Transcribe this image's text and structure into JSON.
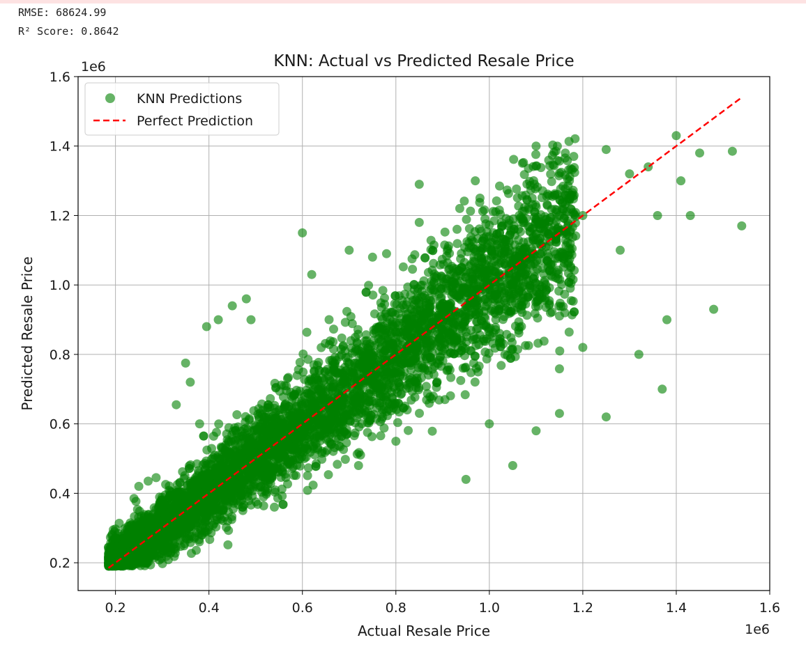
{
  "output": {
    "rmse_line": "RMSE: 68624.99",
    "r2_line": "R² Score: 0.8642"
  },
  "chart_data": {
    "type": "scatter",
    "title": "KNN: Actual vs Predicted Resale Price",
    "xlabel": "Actual Resale Price",
    "ylabel": "Predicted Resale Price",
    "x_offset_label": "1e6",
    "y_offset_label": "1e6",
    "xlim": [
      120000,
      1600000
    ],
    "ylim": [
      120000,
      1600000
    ],
    "x_ticks": [
      200000,
      400000,
      600000,
      800000,
      1000000,
      1200000,
      1400000,
      1600000
    ],
    "x_tick_labels": [
      "0.2",
      "0.4",
      "0.6",
      "0.8",
      "1.0",
      "1.2",
      "1.4",
      "1.6"
    ],
    "y_ticks": [
      200000,
      400000,
      600000,
      800000,
      1000000,
      1200000,
      1400000,
      1600000
    ],
    "y_tick_labels": [
      "0.2",
      "0.4",
      "0.6",
      "0.8",
      "1.0",
      "1.2",
      "1.4",
      "1.6"
    ],
    "grid": true,
    "legend_position": "top-left",
    "series": [
      {
        "name": "KNN Predictions",
        "kind": "scatter",
        "color": "#008000",
        "alpha": 0.6,
        "approx_point_count": 20000,
        "metrics": {
          "rmse": 68624.99,
          "r2": 0.8642
        },
        "sample_points": [
          [
            185000,
            245000
          ],
          [
            190000,
            205000
          ],
          [
            200000,
            225000
          ],
          [
            210000,
            215000
          ],
          [
            215000,
            250000
          ],
          [
            220000,
            260000
          ],
          [
            240000,
            275000
          ],
          [
            250000,
            310000
          ],
          [
            250000,
            420000
          ],
          [
            270000,
            435000
          ],
          [
            300000,
            265000
          ],
          [
            300000,
            360000
          ],
          [
            330000,
            655000
          ],
          [
            350000,
            775000
          ],
          [
            360000,
            720000
          ],
          [
            380000,
            600000
          ],
          [
            395000,
            880000
          ],
          [
            420000,
            900000
          ],
          [
            450000,
            940000
          ],
          [
            480000,
            960000
          ],
          [
            490000,
            900000
          ],
          [
            500000,
            480000
          ],
          [
            540000,
            360000
          ],
          [
            550000,
            500000
          ],
          [
            600000,
            1150000
          ],
          [
            620000,
            1030000
          ],
          [
            700000,
            1100000
          ],
          [
            720000,
            480000
          ],
          [
            750000,
            1080000
          ],
          [
            780000,
            1090000
          ],
          [
            800000,
            550000
          ],
          [
            850000,
            1290000
          ],
          [
            850000,
            1180000
          ],
          [
            880000,
            680000
          ],
          [
            920000,
            1010000
          ],
          [
            950000,
            440000
          ],
          [
            970000,
            1300000
          ],
          [
            980000,
            1250000
          ],
          [
            1000000,
            600000
          ],
          [
            1050000,
            480000
          ],
          [
            1100000,
            1400000
          ],
          [
            1100000,
            580000
          ],
          [
            1150000,
            1200000
          ],
          [
            1150000,
            630000
          ],
          [
            1200000,
            1200000
          ],
          [
            1200000,
            820000
          ],
          [
            1250000,
            1390000
          ],
          [
            1250000,
            620000
          ],
          [
            1280000,
            1100000
          ],
          [
            1300000,
            1320000
          ],
          [
            1320000,
            800000
          ],
          [
            1340000,
            1340000
          ],
          [
            1360000,
            1200000
          ],
          [
            1370000,
            700000
          ],
          [
            1380000,
            900000
          ],
          [
            1400000,
            1430000
          ],
          [
            1410000,
            1300000
          ],
          [
            1430000,
            1200000
          ],
          [
            1450000,
            1380000
          ],
          [
            1480000,
            930000
          ],
          [
            1520000,
            1385000
          ],
          [
            1540000,
            1170000
          ]
        ]
      },
      {
        "name": "Perfect Prediction",
        "kind": "line",
        "style": "dashed",
        "color": "#ff0000",
        "x": [
          185000,
          1540000
        ],
        "y": [
          185000,
          1540000
        ]
      }
    ]
  }
}
